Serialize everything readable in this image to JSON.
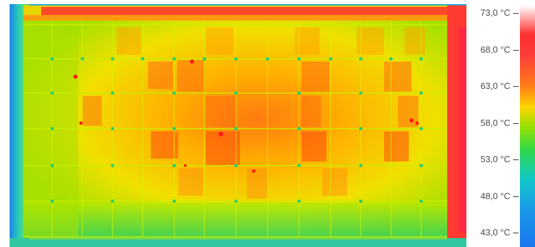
{
  "thermal_image": {
    "description_icon": "thermal-solar-panel-image"
  },
  "scale": {
    "labels": [
      "73,0 °C",
      "68,0 °C",
      "63,0 °C",
      "58,0 °C",
      "53,0 °C",
      "48,0 °C",
      "43,0 °C"
    ],
    "colors": {
      "hot": "#ff3030",
      "warm": "#ff8a18",
      "mid": "#ffd400",
      "cool": "#2ed84a",
      "cold": "#1a78f0"
    }
  }
}
